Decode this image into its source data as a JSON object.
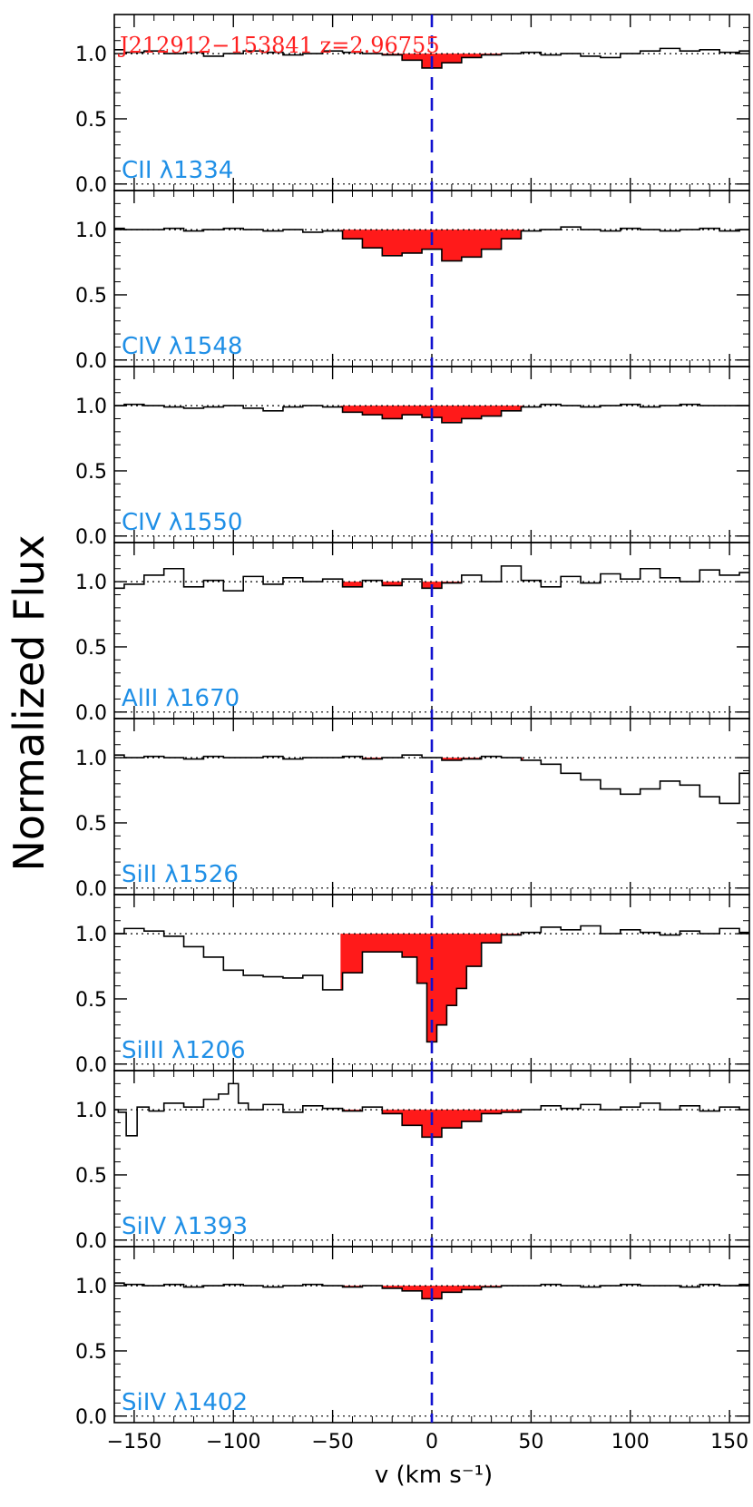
{
  "figure": {
    "ylabel": "Normalized Flux",
    "xlabel": "v (km s⁻¹)",
    "object_label": "J212912−153841 z=2.96755",
    "colors": {
      "spectrum": "#000000",
      "absorption_fill": "#ff1a1a",
      "line_label": "#1f8fe6",
      "object_label": "#ff2020",
      "zero_velocity_line": "#1010d0"
    }
  },
  "chart_data": [
    {
      "type": "line",
      "title": "CII λ1334",
      "ylim": [
        -0.05,
        1.3
      ],
      "xlim": [
        -160,
        160
      ],
      "yticks": [
        "0.0",
        "0.5",
        "1.0"
      ],
      "fill_range": [
        -46,
        46
      ],
      "x": [
        -160,
        -150,
        -140,
        -130,
        -120,
        -110,
        -100,
        -90,
        -80,
        -70,
        -60,
        -50,
        -40,
        -30,
        -20,
        -10,
        0,
        10,
        20,
        30,
        40,
        50,
        60,
        70,
        80,
        90,
        100,
        110,
        120,
        130,
        140,
        150,
        160
      ],
      "y": [
        1.03,
        1.01,
        1.02,
        1.0,
        1.01,
        0.98,
        1.0,
        1.02,
        1.01,
        0.99,
        1.0,
        1.02,
        1.01,
        1.0,
        0.99,
        0.95,
        0.89,
        0.93,
        0.97,
        0.99,
        1.0,
        1.01,
        0.99,
        1.0,
        0.98,
        0.97,
        1.0,
        1.02,
        1.04,
        1.02,
        1.03,
        1.01,
        1.02
      ]
    },
    {
      "type": "line",
      "title": "CIV λ1548",
      "ylim": [
        -0.05,
        1.3
      ],
      "xlim": [
        -160,
        160
      ],
      "yticks": [
        "0.0",
        "0.5",
        "1.0"
      ],
      "fill_range": [
        -46,
        46
      ],
      "x": [
        -160,
        -150,
        -140,
        -130,
        -120,
        -110,
        -100,
        -90,
        -80,
        -70,
        -60,
        -50,
        -40,
        -30,
        -20,
        -10,
        0,
        10,
        20,
        30,
        40,
        50,
        60,
        70,
        80,
        90,
        100,
        110,
        120,
        130,
        140,
        150,
        160
      ],
      "y": [
        1.01,
        1.0,
        1.0,
        1.01,
        0.99,
        1.0,
        1.01,
        1.0,
        0.99,
        1.0,
        0.98,
        0.99,
        0.93,
        0.86,
        0.8,
        0.82,
        0.85,
        0.76,
        0.79,
        0.85,
        0.93,
        0.99,
        1.0,
        1.02,
        1.0,
        0.99,
        1.01,
        1.0,
        0.99,
        1.0,
        1.01,
        0.99,
        1.0
      ]
    },
    {
      "type": "line",
      "title": "CIV λ1550",
      "ylim": [
        -0.05,
        1.3
      ],
      "xlim": [
        -160,
        160
      ],
      "yticks": [
        "0.0",
        "0.5",
        "1.0"
      ],
      "fill_range": [
        -46,
        46
      ],
      "x": [
        -160,
        -150,
        -140,
        -130,
        -120,
        -110,
        -100,
        -90,
        -80,
        -70,
        -60,
        -50,
        -40,
        -30,
        -20,
        -10,
        0,
        10,
        20,
        30,
        40,
        50,
        60,
        70,
        80,
        90,
        100,
        110,
        120,
        130,
        140,
        150,
        160
      ],
      "y": [
        1.0,
        1.01,
        1.0,
        0.99,
        0.98,
        0.99,
        1.0,
        0.98,
        0.96,
        0.99,
        1.0,
        0.99,
        0.95,
        0.93,
        0.9,
        0.93,
        0.91,
        0.87,
        0.9,
        0.92,
        0.96,
        0.99,
        1.01,
        1.0,
        0.99,
        1.0,
        1.01,
        0.99,
        1.0,
        1.01,
        1.0,
        1.0,
        1.0
      ]
    },
    {
      "type": "line",
      "title": "AlII λ1670",
      "ylim": [
        -0.05,
        1.3
      ],
      "xlim": [
        -160,
        160
      ],
      "yticks": [
        "0.0",
        "0.5",
        "1.0"
      ],
      "fill_range": [
        -46,
        46
      ],
      "x": [
        -160,
        -150,
        -140,
        -130,
        -120,
        -110,
        -100,
        -90,
        -80,
        -70,
        -60,
        -50,
        -40,
        -30,
        -20,
        -10,
        0,
        10,
        20,
        30,
        40,
        50,
        60,
        70,
        80,
        90,
        100,
        110,
        120,
        130,
        140,
        150,
        160
      ],
      "y": [
        0.95,
        0.98,
        1.05,
        1.1,
        0.96,
        1.01,
        0.93,
        1.04,
        0.98,
        1.03,
        1.0,
        1.02,
        0.96,
        1.01,
        0.97,
        1.02,
        0.95,
        0.99,
        1.05,
        1.0,
        1.12,
        1.01,
        0.96,
        1.04,
        0.99,
        1.06,
        1.02,
        1.1,
        1.03,
        1.0,
        1.09,
        1.05,
        1.07
      ]
    },
    {
      "type": "line",
      "title": "SiII λ1526",
      "ylim": [
        -0.05,
        1.3
      ],
      "xlim": [
        -160,
        160
      ],
      "yticks": [
        "0.0",
        "0.5",
        "1.0"
      ],
      "fill_range": [
        -46,
        46
      ],
      "x": [
        -160,
        -150,
        -140,
        -130,
        -120,
        -110,
        -100,
        -90,
        -80,
        -70,
        -60,
        -50,
        -40,
        -30,
        -20,
        -10,
        0,
        10,
        20,
        30,
        40,
        50,
        60,
        70,
        80,
        90,
        100,
        110,
        120,
        130,
        140,
        150,
        160
      ],
      "y": [
        1.02,
        1.0,
        1.01,
        1.0,
        0.99,
        1.01,
        1.0,
        1.0,
        1.01,
        0.99,
        1.0,
        1.0,
        1.01,
        0.99,
        1.0,
        1.02,
        1.0,
        0.98,
        0.99,
        1.01,
        1.0,
        0.98,
        0.95,
        0.88,
        0.83,
        0.76,
        0.72,
        0.76,
        0.82,
        0.79,
        0.7,
        0.65,
        0.88
      ]
    },
    {
      "type": "line",
      "title": "SiIII λ1206",
      "ylim": [
        -0.05,
        1.3
      ],
      "xlim": [
        -160,
        160
      ],
      "yticks": [
        "0.0",
        "0.5",
        "1.0"
      ],
      "fill_range": [
        -46,
        46
      ],
      "x": [
        -160,
        -150,
        -140,
        -130,
        -120,
        -110,
        -100,
        -90,
        -80,
        -70,
        -60,
        -50,
        -40,
        -30,
        -20,
        -10,
        -5,
        0,
        5,
        10,
        15,
        20,
        30,
        40,
        50,
        60,
        70,
        80,
        90,
        100,
        110,
        120,
        130,
        140,
        150,
        160
      ],
      "y": [
        1.0,
        1.04,
        1.02,
        0.98,
        0.9,
        0.82,
        0.72,
        0.68,
        0.67,
        0.66,
        0.68,
        0.57,
        0.7,
        0.86,
        0.86,
        0.82,
        0.62,
        0.17,
        0.3,
        0.45,
        0.58,
        0.75,
        0.93,
        0.99,
        1.01,
        1.05,
        1.03,
        1.06,
        1.0,
        1.03,
        1.01,
        0.99,
        1.02,
        1.0,
        1.04,
        1.01
      ]
    },
    {
      "type": "line",
      "title": "SiIV λ1393",
      "ylim": [
        -0.05,
        1.3
      ],
      "xlim": [
        -160,
        160
      ],
      "yticks": [
        "0.0",
        "0.5",
        "1.0"
      ],
      "fill_range": [
        -46,
        46
      ],
      "x": [
        -160,
        -156,
        -152,
        -145,
        -140,
        -130,
        -120,
        -110,
        -105,
        -100,
        -95,
        -90,
        -80,
        -70,
        -60,
        -50,
        -40,
        -30,
        -20,
        -10,
        0,
        10,
        20,
        30,
        40,
        50,
        60,
        70,
        80,
        90,
        100,
        110,
        120,
        130,
        140,
        150,
        160
      ],
      "y": [
        1.0,
        0.98,
        0.8,
        1.02,
        0.99,
        1.05,
        1.02,
        1.08,
        1.12,
        1.2,
        1.05,
        1.0,
        1.04,
        0.98,
        1.03,
        1.01,
        0.99,
        1.02,
        0.97,
        0.88,
        0.79,
        0.86,
        0.91,
        0.97,
        0.98,
        1.0,
        1.03,
        1.01,
        1.04,
        1.0,
        1.02,
        1.05,
        1.0,
        1.03,
        0.99,
        1.02,
        1.0
      ]
    },
    {
      "type": "line",
      "title": "SiIV λ1402",
      "ylim": [
        -0.05,
        1.3
      ],
      "xlim": [
        -160,
        160
      ],
      "yticks": [
        "0.0",
        "0.5",
        "1.0"
      ],
      "fill_range": [
        -46,
        46
      ],
      "x": [
        -160,
        -150,
        -140,
        -130,
        -120,
        -110,
        -100,
        -90,
        -80,
        -70,
        -60,
        -50,
        -40,
        -30,
        -20,
        -10,
        0,
        10,
        20,
        30,
        40,
        50,
        60,
        70,
        80,
        90,
        100,
        110,
        120,
        130,
        140,
        150,
        160
      ],
      "y": [
        1.02,
        1.01,
        1.0,
        1.01,
        0.99,
        1.0,
        1.01,
        1.0,
        0.99,
        1.0,
        1.01,
        1.0,
        0.99,
        1.0,
        0.98,
        0.96,
        0.9,
        0.95,
        0.97,
        0.99,
        1.0,
        1.0,
        1.01,
        1.0,
        0.99,
        1.0,
        1.01,
        1.0,
        1.0,
        0.99,
        1.01,
        1.0,
        1.01
      ]
    }
  ],
  "shared_xaxis": {
    "ticks": [
      "−150",
      "−100",
      "−50",
      "0",
      "50",
      "100",
      "150"
    ],
    "tick_values": [
      -150,
      -100,
      -50,
      0,
      50,
      100,
      150
    ]
  }
}
